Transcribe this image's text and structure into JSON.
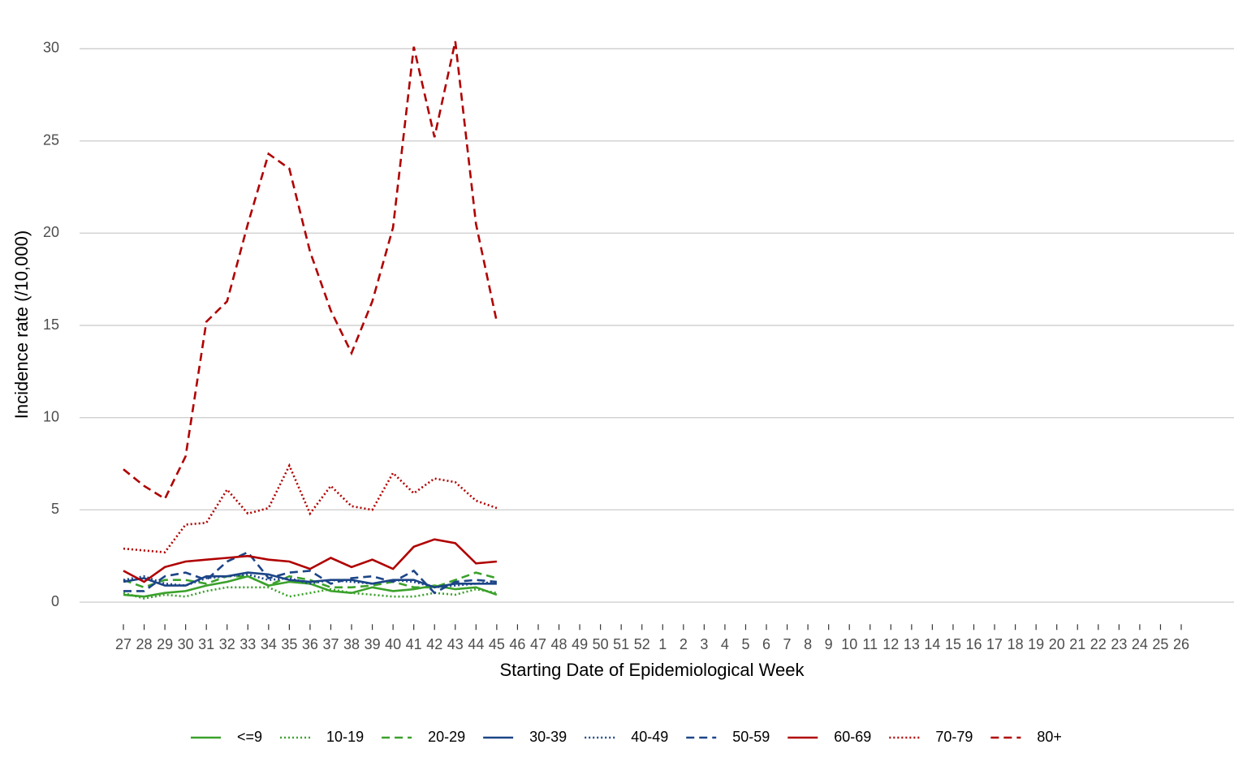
{
  "chart_data": {
    "type": "line",
    "x_label": "Starting Date of Epidemiological Week",
    "y_label": "Incidence rate (/10,000)",
    "categories": [
      "27",
      "28",
      "29",
      "30",
      "31",
      "32",
      "33",
      "34",
      "35",
      "36",
      "37",
      "38",
      "39",
      "40",
      "41",
      "42",
      "43",
      "44",
      "45",
      "46",
      "47",
      "48",
      "49",
      "50",
      "51",
      "52",
      "1",
      "2",
      "3",
      "4",
      "5",
      "6",
      "7",
      "8",
      "9",
      "10",
      "11",
      "12",
      "13",
      "14",
      "15",
      "16",
      "17",
      "18",
      "19",
      "20",
      "21",
      "22",
      "23",
      "24",
      "25",
      "26"
    ],
    "ylim": [
      -1.2,
      30.8
    ],
    "yticks": [
      0,
      5,
      10,
      15,
      20,
      25,
      30
    ],
    "grid": true,
    "legend": "bottom",
    "series": [
      {
        "name": "<=9",
        "color": "#3aa12a",
        "linetype": "solid",
        "values": [
          0.4,
          0.3,
          0.5,
          0.6,
          0.9,
          1.1,
          1.4,
          0.9,
          1.1,
          1.0,
          0.6,
          0.5,
          0.8,
          0.6,
          0.7,
          0.9,
          0.7,
          0.8,
          0.4,
          null,
          null,
          null,
          null,
          null,
          null,
          null,
          null,
          null,
          null,
          null,
          null,
          null,
          null,
          null,
          null,
          null,
          null,
          null,
          null,
          null,
          null,
          null,
          null,
          null,
          null,
          null,
          null,
          null,
          null,
          null,
          null,
          null
        ]
      },
      {
        "name": "10-19",
        "color": "#3aa12a",
        "linetype": "dotted",
        "values": [
          0.5,
          0.2,
          0.4,
          0.3,
          0.6,
          0.8,
          0.8,
          0.8,
          0.3,
          0.5,
          0.7,
          0.5,
          0.4,
          0.3,
          0.3,
          0.5,
          0.4,
          0.7,
          0.5,
          null,
          null,
          null,
          null,
          null,
          null,
          null,
          null,
          null,
          null,
          null,
          null,
          null,
          null,
          null,
          null,
          null,
          null,
          null,
          null,
          null,
          null,
          null,
          null,
          null,
          null,
          null,
          null,
          null,
          null,
          null,
          null,
          null
        ]
      },
      {
        "name": "20-29",
        "color": "#3aa12a",
        "linetype": "dashed",
        "values": [
          1.2,
          0.8,
          1.2,
          1.2,
          1.0,
          1.4,
          1.4,
          0.9,
          1.4,
          1.2,
          0.8,
          0.8,
          0.9,
          1.1,
          0.8,
          0.8,
          1.2,
          1.6,
          1.3,
          null,
          null,
          null,
          null,
          null,
          null,
          null,
          null,
          null,
          null,
          null,
          null,
          null,
          null,
          null,
          null,
          null,
          null,
          null,
          null,
          null,
          null,
          null,
          null,
          null,
          null,
          null,
          null,
          null,
          null,
          null,
          null,
          null
        ]
      },
      {
        "name": "30-39",
        "color": "#1c4587",
        "linetype": "solid",
        "values": [
          1.1,
          1.3,
          0.9,
          0.9,
          1.4,
          1.4,
          1.6,
          1.5,
          1.2,
          1.1,
          1.2,
          1.2,
          1.0,
          1.2,
          1.2,
          0.8,
          1.0,
          1.0,
          1.0,
          null,
          null,
          null,
          null,
          null,
          null,
          null,
          null,
          null,
          null,
          null,
          null,
          null,
          null,
          null,
          null,
          null,
          null,
          null,
          null,
          null,
          null,
          null,
          null,
          null,
          null,
          null,
          null,
          null,
          null,
          null,
          null,
          null
        ]
      },
      {
        "name": "40-49",
        "color": "#1c4587",
        "linetype": "dotted",
        "values": [
          1.2,
          1.4,
          1.0,
          0.9,
          1.3,
          1.4,
          1.5,
          1.2,
          1.3,
          1.0,
          1.2,
          1.1,
          1.0,
          1.2,
          1.1,
          0.8,
          0.9,
          1.0,
          1.1,
          null,
          null,
          null,
          null,
          null,
          null,
          null,
          null,
          null,
          null,
          null,
          null,
          null,
          null,
          null,
          null,
          null,
          null,
          null,
          null,
          null,
          null,
          null,
          null,
          null,
          null,
          null,
          null,
          null,
          null,
          null,
          null,
          null
        ]
      },
      {
        "name": "50-59",
        "color": "#1c4587",
        "linetype": "dashed",
        "values": [
          0.6,
          0.6,
          1.4,
          1.6,
          1.2,
          2.2,
          2.7,
          1.3,
          1.6,
          1.7,
          1.0,
          1.3,
          1.4,
          1.1,
          1.7,
          0.5,
          1.1,
          1.2,
          1.1,
          null,
          null,
          null,
          null,
          null,
          null,
          null,
          null,
          null,
          null,
          null,
          null,
          null,
          null,
          null,
          null,
          null,
          null,
          null,
          null,
          null,
          null,
          null,
          null,
          null,
          null,
          null,
          null,
          null,
          null,
          null,
          null,
          null
        ]
      },
      {
        "name": "60-69",
        "color": "#b00000",
        "linetype": "solid",
        "values": [
          1.7,
          1.1,
          1.9,
          2.2,
          2.3,
          2.4,
          2.5,
          2.3,
          2.2,
          1.8,
          2.4,
          1.9,
          2.3,
          1.8,
          3.0,
          3.4,
          3.2,
          2.1,
          2.2,
          null,
          null,
          null,
          null,
          null,
          null,
          null,
          null,
          null,
          null,
          null,
          null,
          null,
          null,
          null,
          null,
          null,
          null,
          null,
          null,
          null,
          null,
          null,
          null,
          null,
          null,
          null,
          null,
          null,
          null,
          null,
          null,
          null
        ]
      },
      {
        "name": "70-79",
        "color": "#b00000",
        "linetype": "dotted",
        "values": [
          2.9,
          2.8,
          2.7,
          4.2,
          4.3,
          6.1,
          4.8,
          5.1,
          7.4,
          4.8,
          6.3,
          5.2,
          5.0,
          7.0,
          5.9,
          6.7,
          6.5,
          5.5,
          5.1,
          null,
          null,
          null,
          null,
          null,
          null,
          null,
          null,
          null,
          null,
          null,
          null,
          null,
          null,
          null,
          null,
          null,
          null,
          null,
          null,
          null,
          null,
          null,
          null,
          null,
          null,
          null,
          null,
          null,
          null,
          null,
          null,
          null
        ]
      },
      {
        "name": "80+",
        "color": "#b00000",
        "linetype": "dashed",
        "values": [
          7.2,
          6.3,
          5.6,
          7.9,
          15.2,
          16.3,
          20.5,
          24.3,
          23.5,
          19.0,
          15.8,
          13.5,
          16.3,
          20.3,
          30.1,
          25.2,
          30.4,
          20.5,
          15.2,
          null,
          null,
          null,
          null,
          null,
          null,
          null,
          null,
          null,
          null,
          null,
          null,
          null,
          null,
          null,
          null,
          null,
          null,
          null,
          null,
          null,
          null,
          null,
          null,
          null,
          null,
          null,
          null,
          null,
          null,
          null,
          null,
          null
        ]
      }
    ]
  }
}
